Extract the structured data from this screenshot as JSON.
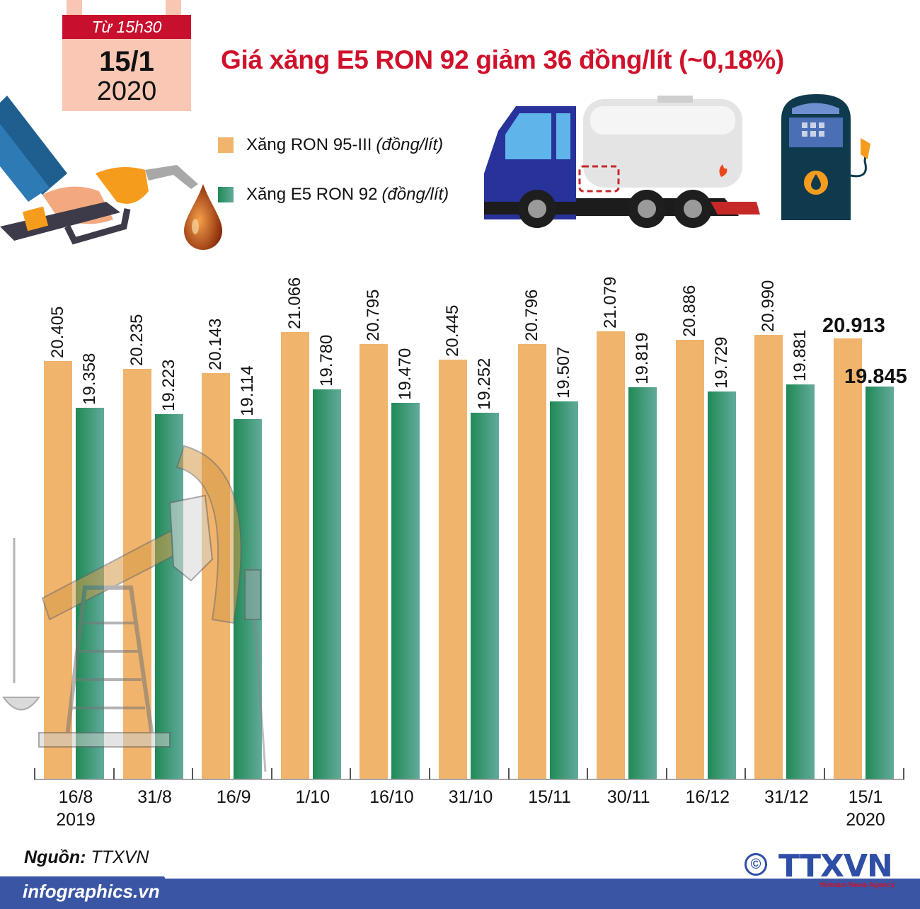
{
  "calendar": {
    "time_label": "Từ 15h30",
    "day": "15/1",
    "year": "2020"
  },
  "title": "Giá xăng E5 RON 92 giảm 36 đồng/lít (~0,18%)",
  "legend": [
    {
      "label": "Xăng RON 95-III",
      "unit": "(đồng/lít)",
      "color": "#f0b46d"
    },
    {
      "label": "Xăng E5 RON 92",
      "unit": "(đồng/lít)",
      "color": "#2e8b62"
    }
  ],
  "illustrations": [
    "fuel-nozzle-hand",
    "oil-drop",
    "tanker-truck",
    "fuel-pump",
    "oil-pump-jack"
  ],
  "chart_data": {
    "type": "bar",
    "title": "Giá xăng E5 RON 92 giảm 36 đồng/lít (~0,18%)",
    "xlabel": "",
    "ylabel": "đồng/lít",
    "categories": [
      "16/8 2019",
      "31/8",
      "16/9",
      "1/10",
      "16/10",
      "31/10",
      "15/11",
      "30/11",
      "16/12",
      "31/12",
      "15/1 2020"
    ],
    "category_lines": [
      [
        "16/8",
        "2019"
      ],
      [
        "31/8"
      ],
      [
        "16/9"
      ],
      [
        "1/10"
      ],
      [
        "16/10"
      ],
      [
        "31/10"
      ],
      [
        "15/11"
      ],
      [
        "30/11"
      ],
      [
        "16/12"
      ],
      [
        "31/12"
      ],
      [
        "15/1",
        "2020"
      ]
    ],
    "series": [
      {
        "name": "Xăng RON 95-III (đồng/lít)",
        "color": "#f0b46d",
        "values": [
          20405,
          20235,
          20143,
          21066,
          20795,
          20445,
          20796,
          21079,
          20886,
          20990,
          20913
        ],
        "labels": [
          "20.405",
          "20.235",
          "20.143",
          "21.066",
          "20.795",
          "20.445",
          "20.796",
          "21.079",
          "20.886",
          "20.990",
          "20.913"
        ]
      },
      {
        "name": "Xăng E5 RON 92 (đồng/lít)",
        "color": "#2e8b62",
        "values": [
          19358,
          19223,
          19114,
          19780,
          19470,
          19252,
          19507,
          19819,
          19729,
          19881,
          19845
        ],
        "labels": [
          "19.358",
          "19.223",
          "19.114",
          "19.780",
          "19.470",
          "19.252",
          "19.507",
          "19.819",
          "19.729",
          "19.881",
          "19.845"
        ]
      }
    ],
    "highlight_last": true,
    "grid": false,
    "legend_position": "top-left",
    "ylim": [
      11060,
      21500
    ]
  },
  "footer": {
    "source_label": "Nguồn:",
    "source_value": "TTXVN",
    "site": "infographics.vn",
    "copyright_symbol": "©",
    "logo_text": "TTXVN",
    "logo_tagline": "Vietnam News Agency"
  }
}
